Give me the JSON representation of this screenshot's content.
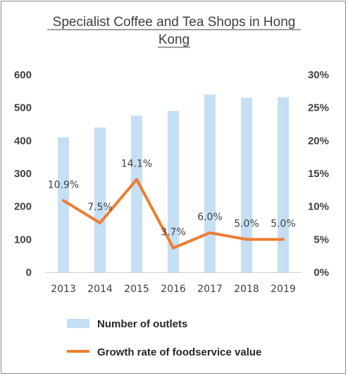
{
  "chart_data": {
    "type": "bar",
    "title_lines": [
      "Specialist Coffee and Tea Shops in Hong",
      "Kong"
    ],
    "categories": [
      "2013",
      "2014",
      "2015",
      "2016",
      "2017",
      "2018",
      "2019"
    ],
    "series": [
      {
        "name": "Number of outlets",
        "type": "bar",
        "axis": "left",
        "color": "#c5dff5",
        "values": [
          410,
          440,
          476,
          490,
          540,
          530,
          532
        ]
      },
      {
        "name": "Growth rate of foodservice value",
        "type": "line",
        "axis": "right",
        "color": "#ed7d31",
        "values": [
          10.9,
          7.5,
          14.1,
          3.7,
          6.0,
          5.0,
          5.0
        ],
        "data_labels": [
          "10.9%",
          "7.5%",
          "14.1%",
          "3.7%",
          "6.0%",
          "5.0%",
          "5.0%"
        ]
      }
    ],
    "y_left": {
      "min": 0,
      "max": 600,
      "ticks": [
        "0",
        "100",
        "200",
        "300",
        "400",
        "500",
        "600"
      ]
    },
    "y_right": {
      "min": 0,
      "max": 30,
      "ticks": [
        "0%",
        "5%",
        "10%",
        "15%",
        "20%",
        "25%",
        "30%"
      ]
    },
    "grid": false,
    "legend_position": "bottom"
  }
}
